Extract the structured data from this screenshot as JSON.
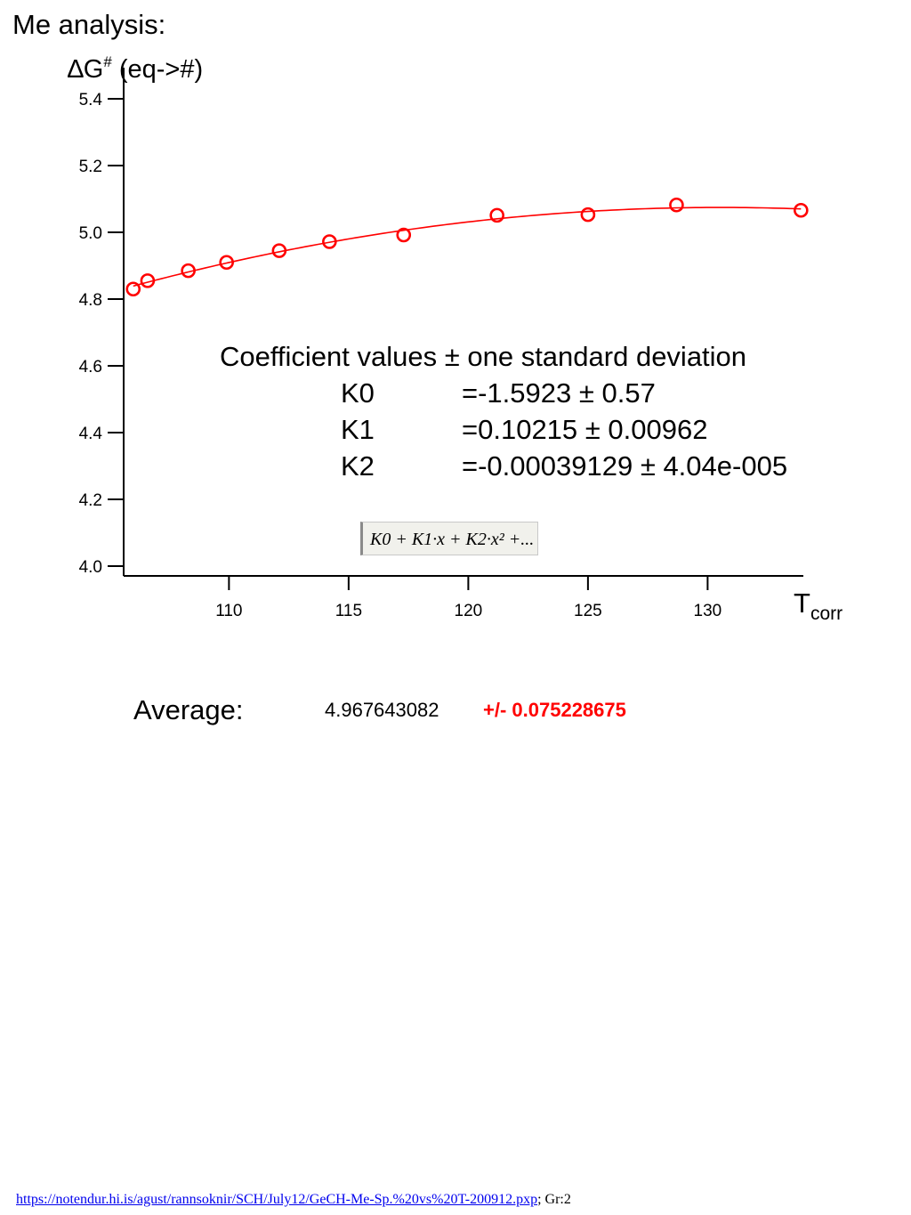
{
  "header": {
    "title": "Me analysis:"
  },
  "chart_data": {
    "type": "scatter",
    "ylabel": {
      "main": "∆G",
      "sup": "#",
      "rest": " (eq->#)"
    },
    "xlabel": {
      "main": "T",
      "sub": "corr"
    },
    "xlim": [
      105.6,
      134
    ],
    "ylim": [
      4.0,
      5.4
    ],
    "xticks": [
      110,
      115,
      120,
      125,
      130
    ],
    "yticks": [
      4.0,
      4.2,
      4.4,
      4.6,
      4.8,
      5.0,
      5.2,
      5.4
    ],
    "x": [
      106.0,
      106.6,
      108.3,
      109.9,
      112.1,
      114.2,
      117.3,
      121.2,
      125.0,
      128.7,
      133.9
    ],
    "y": [
      4.83,
      4.855,
      4.885,
      4.91,
      4.945,
      4.972,
      4.992,
      5.051,
      5.053,
      5.082,
      5.066
    ],
    "fit": {
      "type": "polynomial",
      "K0": -1.5923,
      "K1": 0.10215,
      "K2": -0.00039129
    },
    "marker_color": "#ff0000",
    "line_color": "#ff0000"
  },
  "coefficients": {
    "header": "Coefficient values ± one standard deviation",
    "rows": [
      {
        "name": "K0",
        "value": "=-1.5923 ± 0.57"
      },
      {
        "name": "K1",
        "value": "=0.10215 ± 0.00962"
      },
      {
        "name": "K2",
        "value": "=-0.00039129 ± 4.04e-005"
      }
    ],
    "formula": "K0 + K1·x + K2·x² +..."
  },
  "summary": {
    "label": "Average:",
    "value": "4.967643082",
    "error": "+/- 0.075228675"
  },
  "footer": {
    "link": "https://notendur.hi.is/agust/rannsoknir/SCH/July12/GeCH-Me-Sp.%20vs%20T-200912.pxp",
    "suffix": "; Gr:2"
  }
}
